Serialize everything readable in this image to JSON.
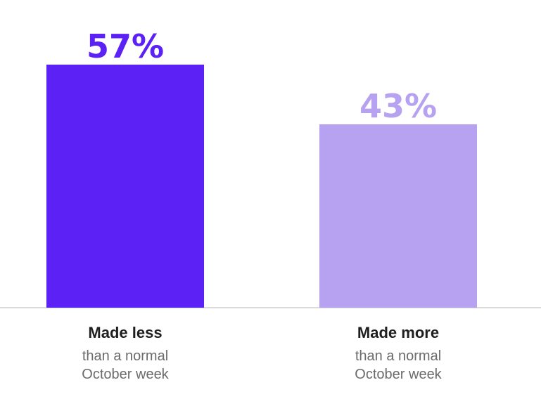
{
  "chart_data": {
    "type": "bar",
    "categories": [
      "Made less",
      "Made more"
    ],
    "category_subtitles": [
      [
        "than a normal",
        "October week"
      ],
      [
        "than a normal",
        "October week"
      ]
    ],
    "values": [
      57,
      43
    ],
    "value_labels": [
      "57%",
      "43%"
    ],
    "bar_colors": [
      "#5b21f5",
      "#b7a2f2"
    ],
    "label_colors": [
      "#5b21f5",
      "#b7a2f2"
    ],
    "baseline_color": "#dcdcdc",
    "ylim": [
      0,
      100
    ],
    "title": "",
    "xlabel": "",
    "ylabel": "",
    "grid": false,
    "legend": "none"
  }
}
